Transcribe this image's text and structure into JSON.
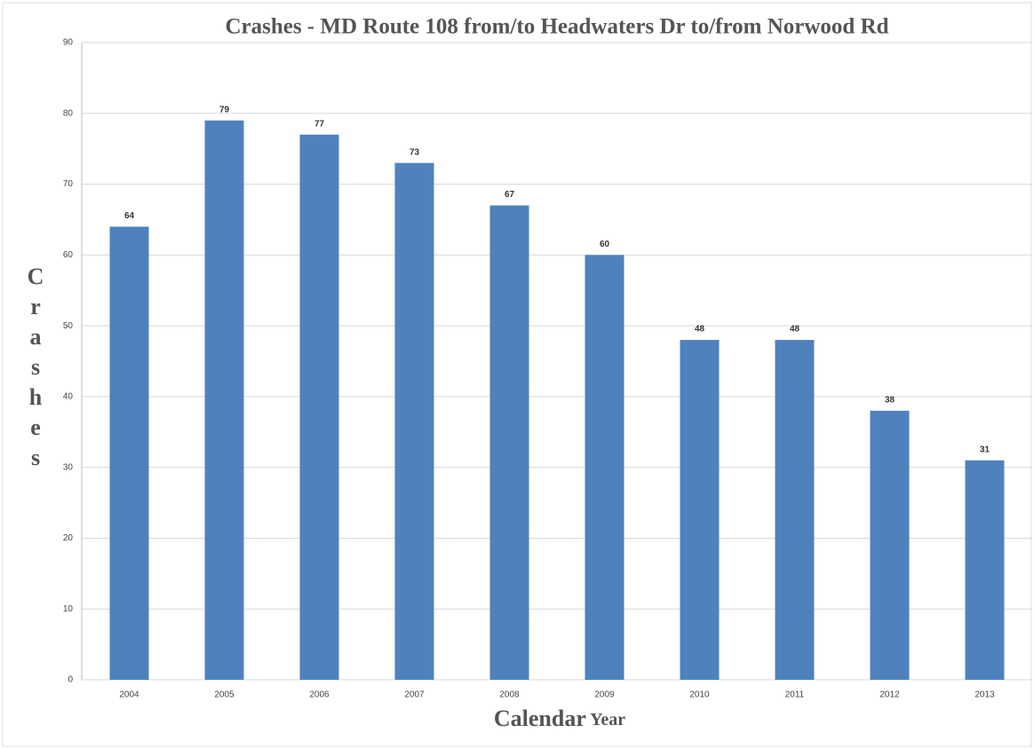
{
  "chart_data": {
    "type": "bar",
    "title": "Crashes - MD Route 108 from/to Headwaters Dr to/from Norwood Rd",
    "x_label": "Calendar Year",
    "y_label": "Crashes",
    "categories": [
      "2004",
      "2005",
      "2006",
      "2007",
      "2008",
      "2009",
      "2010",
      "2011",
      "2012",
      "2013"
    ],
    "values": [
      64,
      79,
      77,
      73,
      67,
      60,
      48,
      48,
      38,
      31
    ],
    "color": "#4f81bd",
    "ylim": [
      0,
      90
    ],
    "yticks": [
      0,
      10,
      20,
      30,
      40,
      50,
      60,
      70,
      80,
      90
    ],
    "grid": true
  }
}
